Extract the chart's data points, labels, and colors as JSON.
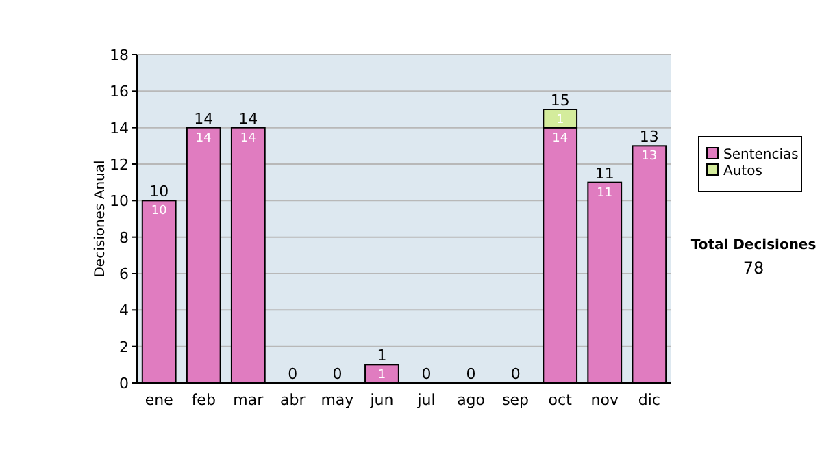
{
  "chart_data": {
    "type": "bar",
    "ylabel": "Decisiones Anual",
    "categories": [
      "ene",
      "feb",
      "mar",
      "abr",
      "may",
      "jun",
      "jul",
      "ago",
      "sep",
      "oct",
      "nov",
      "dic"
    ],
    "series": [
      {
        "name": "Sentencias",
        "color": "#e07cc0",
        "values": [
          10,
          14,
          14,
          0,
          0,
          1,
          0,
          0,
          0,
          14,
          11,
          13
        ],
        "value_labels": [
          "10",
          "14",
          "14",
          null,
          null,
          "1",
          null,
          null,
          null,
          "14",
          "11",
          "13"
        ]
      },
      {
        "name": "Autos",
        "color": "#d4ec9c",
        "values": [
          0,
          0,
          0,
          0,
          0,
          0,
          0,
          0,
          0,
          1,
          0,
          0
        ],
        "value_labels": [
          null,
          null,
          null,
          null,
          null,
          null,
          null,
          null,
          null,
          "1",
          null,
          null
        ]
      }
    ],
    "stacked": true,
    "totals": [
      "10",
      "14",
      "14",
      "0",
      "0",
      "1",
      "0",
      "0",
      "0",
      "15",
      "11",
      "13"
    ],
    "ylim": [
      0,
      18
    ],
    "yticks": [
      0,
      2,
      4,
      6,
      8,
      10,
      12,
      14,
      16,
      18
    ],
    "grid": "y",
    "legend": "right",
    "annotations": [
      "Total Decisiones",
      "78"
    ]
  }
}
